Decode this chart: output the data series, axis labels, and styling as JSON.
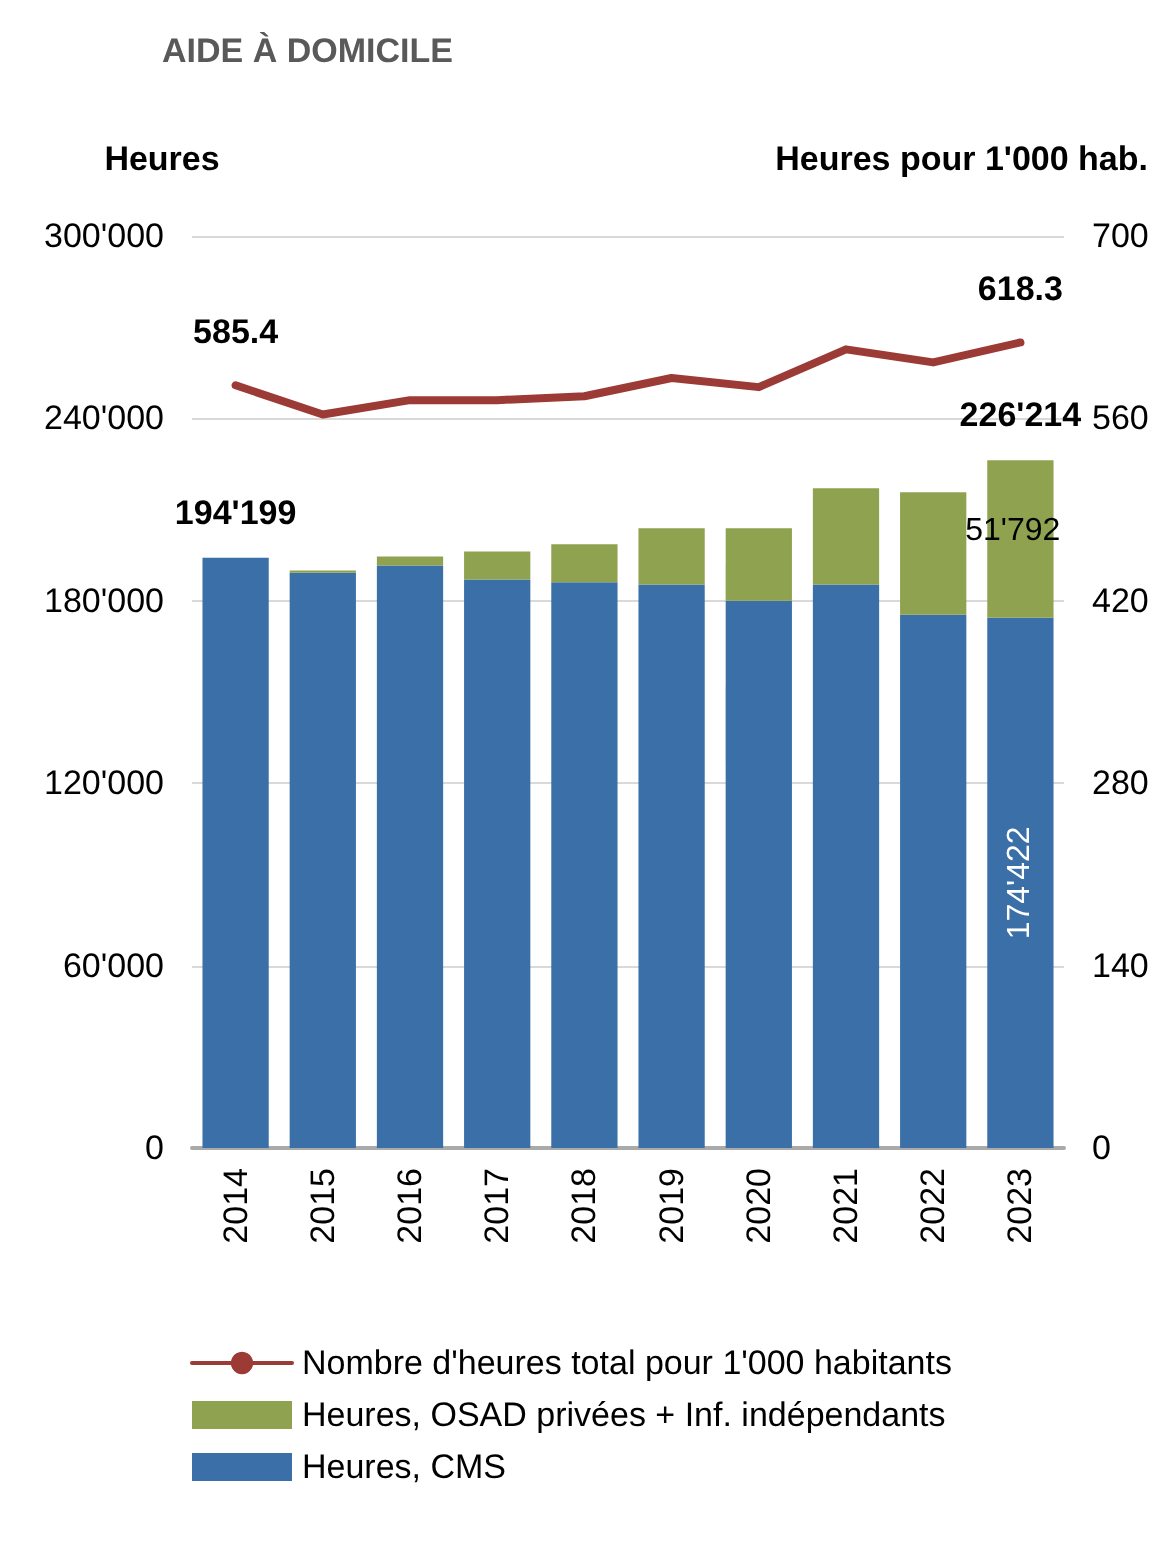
{
  "chart_data": {
    "type": "bar",
    "title": "AIDE À DOMICILE",
    "ylabel": "Heures",
    "y2label": "Heures pour 1'000 hab.",
    "categories": [
      "2014",
      "2015",
      "2016",
      "2017",
      "2018",
      "2019",
      "2020",
      "2021",
      "2022",
      "2023"
    ],
    "stacked": true,
    "series": [
      {
        "name": "Heures, CMS",
        "color": "#3a70a7",
        "values": [
          194199,
          189200,
          191600,
          187000,
          186100,
          185400,
          180000,
          185400,
          175400,
          174422
        ],
        "value_labels": [
          null,
          null,
          null,
          null,
          null,
          null,
          null,
          null,
          null,
          "174'422"
        ]
      },
      {
        "name": "Heures, OSAD privées + Inf. indépendants",
        "color": "#8fa24f",
        "values": [
          0,
          800,
          3000,
          9200,
          12500,
          18500,
          23900,
          31600,
          40300,
          51792
        ],
        "value_labels": [
          null,
          null,
          null,
          null,
          null,
          null,
          null,
          null,
          null,
          "51'792"
        ]
      },
      {
        "name": "Nombre d'heures total pour 1'000 habitants",
        "type": "line",
        "axis": "y2",
        "color": "#9c3a36",
        "values": [
          585.4,
          563,
          574,
          574,
          577,
          591,
          584,
          613,
          603,
          618.3
        ],
        "value_labels": [
          "585.4",
          null,
          null,
          null,
          null,
          null,
          null,
          null,
          null,
          "618.3"
        ]
      }
    ],
    "totals": [
      "194'199",
      null,
      null,
      null,
      null,
      null,
      null,
      null,
      null,
      "226'214"
    ],
    "ylim": [
      0,
      300000
    ],
    "yticks": [
      {
        "value": 0,
        "label": "0"
      },
      {
        "value": 60000,
        "label": "60'000"
      },
      {
        "value": 120000,
        "label": "120'000"
      },
      {
        "value": 180000,
        "label": "180'000"
      },
      {
        "value": 240000,
        "label": "240'000"
      },
      {
        "value": 300000,
        "label": "300'000"
      }
    ],
    "y2lim": [
      0,
      700
    ],
    "y2ticks": [
      0,
      140,
      280,
      420,
      560,
      700
    ],
    "grid": "y",
    "legend": "bottom",
    "marker": "none",
    "line_style": "solid"
  }
}
